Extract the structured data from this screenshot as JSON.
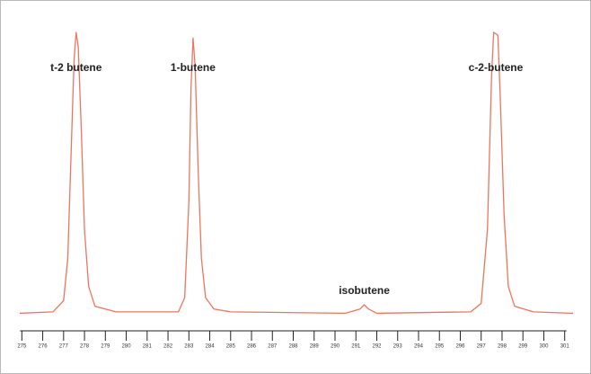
{
  "chart_data": {
    "type": "line",
    "x": [
      274.9,
      276.5,
      277.0,
      277.2,
      277.35,
      277.5,
      277.6,
      277.7,
      277.85,
      278.0,
      278.2,
      278.5,
      279.5,
      282.5,
      282.8,
      283.0,
      283.1,
      283.2,
      283.3,
      283.45,
      283.6,
      283.8,
      284.2,
      285.0,
      290.5,
      291.2,
      291.4,
      291.6,
      292.0,
      296.5,
      297.0,
      297.3,
      297.5,
      297.6,
      297.8,
      297.9,
      298.1,
      298.3,
      298.6,
      299.5,
      301.4
    ],
    "series": [
      {
        "color": "#e9765f",
        "values": [
          0.5,
          1,
          5,
          20,
          55,
          90,
          100,
          95,
          65,
          30,
          10,
          3,
          1,
          1,
          6,
          40,
          80,
          98,
          88,
          50,
          20,
          6,
          2,
          1,
          0.5,
          2,
          3.5,
          2,
          0.5,
          1,
          4,
          30,
          85,
          100,
          99,
          80,
          35,
          10,
          3,
          1,
          0.5
        ]
      }
    ],
    "xlim": [
      274.9,
      301.4
    ],
    "ylim": [
      0,
      100
    ],
    "xticks": [
      275,
      276,
      277,
      278,
      279,
      280,
      281,
      282,
      283,
      284,
      285,
      286,
      287,
      288,
      289,
      290,
      291,
      292,
      293,
      294,
      295,
      296,
      297,
      298,
      299,
      300,
      301
    ],
    "peaks": [
      {
        "label": "t-2 butene",
        "x": 277.6,
        "height": 100
      },
      {
        "label": "1-butene",
        "x": 283.2,
        "height": 98
      },
      {
        "label": "isobutene",
        "x": 291.4,
        "height": 3.5
      },
      {
        "label": "c-2-butene",
        "x": 297.7,
        "height": 100
      }
    ]
  }
}
